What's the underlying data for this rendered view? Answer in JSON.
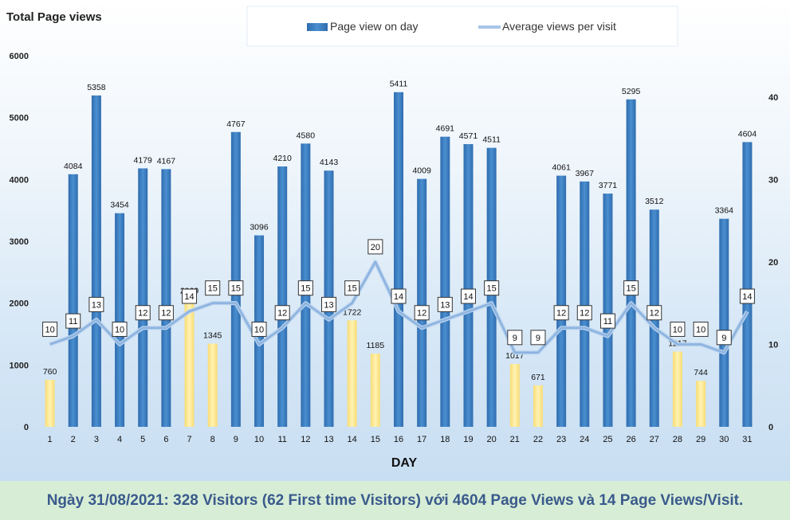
{
  "footer": {
    "summary": "Ngày 31/08/2021: 328 Visitors (62 First time Visitors) với 4604 Page Views và 14 Page Views/Visit."
  },
  "colors": {
    "bar_blue": "#3f7fc1",
    "bar_yellow": "#fde68a",
    "line": "#a7c5e8",
    "footer_bg": "#d7edd6",
    "footer_text": "#3a5a8c"
  },
  "chart_data": {
    "type": "bar",
    "title": "Total Page views",
    "xlabel": "DAY",
    "ylabel": "",
    "ylim": [
      0,
      6000
    ],
    "y_ticks": [
      "0",
      "1000",
      "2000",
      "3000",
      "4000",
      "5000",
      "6000"
    ],
    "y2lim": [
      0,
      45
    ],
    "y2_ticks": [
      "0",
      "10",
      "20",
      "30",
      "40"
    ],
    "legend": [
      "Page view on day",
      "Average views per visit"
    ],
    "legend_position": "top",
    "categories": [
      "1",
      "2",
      "3",
      "4",
      "5",
      "6",
      "7",
      "8",
      "9",
      "10",
      "11",
      "12",
      "13",
      "14",
      "15",
      "16",
      "17",
      "18",
      "19",
      "20",
      "21",
      "22",
      "23",
      "24",
      "25",
      "26",
      "27",
      "28",
      "29",
      "30",
      "31"
    ],
    "series": [
      {
        "name": "Page view on day",
        "type": "bar",
        "axis": "left",
        "values": [
          760,
          4084,
          5358,
          3454,
          4179,
          4167,
          2069,
          1345,
          4767,
          3096,
          4210,
          4580,
          4143,
          1722,
          1185,
          5411,
          4009,
          4691,
          4571,
          4511,
          1017,
          671,
          4061,
          3967,
          3771,
          5295,
          3512,
          1217,
          744,
          3364,
          4604
        ],
        "highlight_yellow_days": [
          "1",
          "7",
          "8",
          "14",
          "15",
          "21",
          "22",
          "28",
          "29"
        ]
      },
      {
        "name": "Average views per visit",
        "type": "line",
        "axis": "right",
        "values": [
          10,
          11,
          13,
          10,
          12,
          12,
          14,
          15,
          15,
          10,
          12,
          15,
          13,
          15,
          20,
          14,
          12,
          13,
          14,
          15,
          9,
          9,
          12,
          12,
          11,
          15,
          12,
          10,
          10,
          9,
          14
        ]
      }
    ]
  }
}
